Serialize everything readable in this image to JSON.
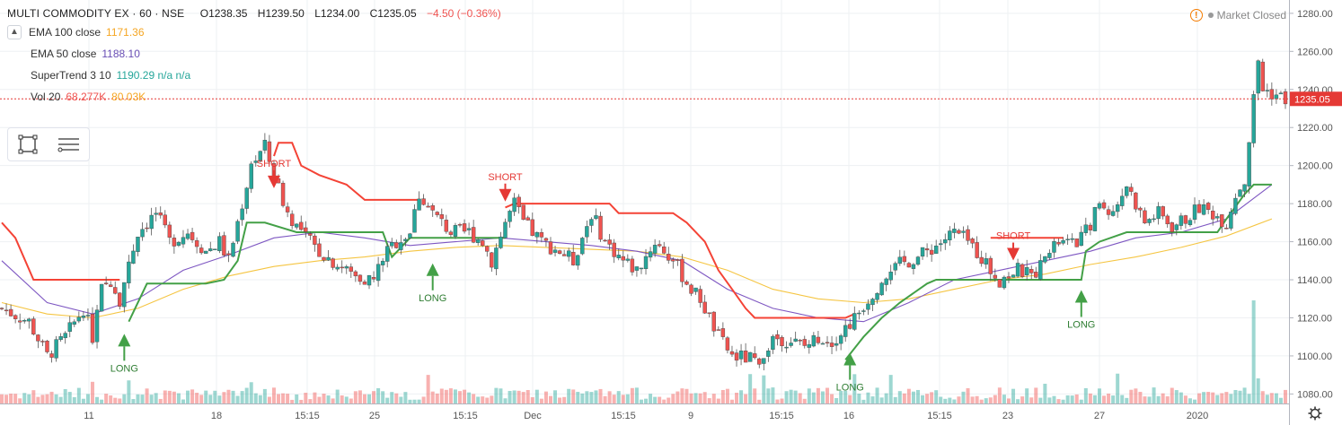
{
  "header": {
    "symbol": "MULTI COMMODITY EX · 60 · NSE",
    "open": "O1238.35",
    "high": "H1239.50",
    "low": "L1234.00",
    "close": "C1235.05",
    "change": "−4.50 (−0.36%)"
  },
  "collapse_icon": "chevron-up-icon",
  "indicators": [
    {
      "name": "EMA 100 close",
      "value": "1171.36",
      "color": "#f5a623"
    },
    {
      "name": "EMA 50 close",
      "value": "1188.10",
      "color": "#6a4fb5"
    },
    {
      "name": "SuperTrend 3 10",
      "value": "1190.29 n/a n/a",
      "color": "#26a69a"
    },
    {
      "name": "Vol 20",
      "value": "68.277K",
      "value2": "80.03K",
      "color": "#ef5350",
      "color2": "#f5a623"
    }
  ],
  "market_status": {
    "label": "Market Closed",
    "icon": "warning-icon"
  },
  "toolbox": {
    "icons": [
      "rectangle-tool-icon",
      "lines-menu-icon"
    ]
  },
  "colors": {
    "up": "#26a69a",
    "down": "#ef5350",
    "supertrend_up": "#43a047",
    "supertrend_down": "#f44336",
    "ema100": "#f5c542",
    "ema50": "#7e57c2",
    "price_line": "#e53935",
    "grid": "#eef0f3"
  },
  "chart_data": {
    "type": "candlestick",
    "x_labels": [
      "11",
      "18",
      "15:15",
      "25",
      "15:15",
      "Dec",
      "15:15",
      "9",
      "15:15",
      "16",
      "15:15",
      "23",
      "27",
      "2020"
    ],
    "y_ticks": [
      1080,
      1100,
      1120,
      1140,
      1160,
      1180,
      1200,
      1220,
      1240,
      1260,
      1280
    ],
    "y_tick_labels": [
      "1080.00",
      "1100.00",
      "1120.00",
      "1140.00",
      "1160.00",
      "1180.00",
      "1200.00",
      "1220.00",
      "1240.00",
      "1260.00",
      "1280.00"
    ],
    "ylim": [
      1075,
      1287
    ],
    "last_price": 1235.05,
    "last_price_label": "1235.05",
    "close_path": [
      [
        0,
        1125
      ],
      [
        6,
        1118
      ],
      [
        10,
        1100
      ],
      [
        14,
        1110
      ],
      [
        18,
        1125
      ],
      [
        20,
        1110
      ],
      [
        22,
        1135
      ],
      [
        24,
        1140
      ],
      [
        26,
        1130
      ],
      [
        30,
        1165
      ],
      [
        34,
        1175
      ],
      [
        37,
        1160
      ],
      [
        41,
        1165
      ],
      [
        45,
        1155
      ],
      [
        48,
        1160
      ],
      [
        50,
        1150
      ],
      [
        52,
        1170
      ],
      [
        55,
        1200
      ],
      [
        58,
        1210
      ],
      [
        60,
        1195
      ],
      [
        63,
        1175
      ],
      [
        66,
        1165
      ],
      [
        70,
        1155
      ],
      [
        74,
        1148
      ],
      [
        78,
        1142
      ],
      [
        82,
        1140
      ],
      [
        84,
        1152
      ],
      [
        87,
        1160
      ],
      [
        90,
        1165
      ],
      [
        92,
        1185
      ],
      [
        95,
        1175
      ],
      [
        99,
        1165
      ],
      [
        103,
        1165
      ],
      [
        106,
        1160
      ],
      [
        108,
        1150
      ],
      [
        111,
        1170
      ],
      [
        113,
        1180
      ],
      [
        115,
        1170
      ],
      [
        119,
        1160
      ],
      [
        123,
        1155
      ],
      [
        126,
        1150
      ],
      [
        130,
        1175
      ],
      [
        133,
        1160
      ],
      [
        137,
        1150
      ],
      [
        140,
        1145
      ],
      [
        144,
        1160
      ],
      [
        148,
        1150
      ],
      [
        152,
        1135
      ],
      [
        154,
        1130
      ],
      [
        156,
        1120
      ],
      [
        158,
        1110
      ],
      [
        161,
        1100
      ],
      [
        166,
        1098
      ],
      [
        168,
        1100
      ],
      [
        170,
        1110
      ],
      [
        174,
        1108
      ],
      [
        177,
        1105
      ],
      [
        180,
        1110
      ],
      [
        183,
        1108
      ],
      [
        186,
        1115
      ],
      [
        188,
        1120
      ],
      [
        191,
        1130
      ],
      [
        194,
        1140
      ],
      [
        198,
        1148
      ],
      [
        202,
        1152
      ],
      [
        206,
        1158
      ],
      [
        210,
        1165
      ],
      [
        213,
        1160
      ],
      [
        216,
        1152
      ],
      [
        218,
        1145
      ],
      [
        220,
        1140
      ],
      [
        224,
        1145
      ],
      [
        227,
        1142
      ],
      [
        230,
        1150
      ],
      [
        233,
        1160
      ],
      [
        236,
        1158
      ],
      [
        239,
        1165
      ],
      [
        242,
        1180
      ],
      [
        245,
        1175
      ],
      [
        248,
        1190
      ],
      [
        250,
        1180
      ],
      [
        252,
        1170
      ],
      [
        255,
        1175
      ],
      [
        258,
        1168
      ],
      [
        261,
        1172
      ],
      [
        264,
        1178
      ],
      [
        267,
        1175
      ],
      [
        270,
        1170
      ],
      [
        272,
        1185
      ],
      [
        274,
        1192
      ],
      [
        276,
        1235
      ],
      [
        277,
        1255
      ],
      [
        278,
        1240
      ],
      [
        280,
        1238
      ],
      [
        283,
        1235
      ]
    ],
    "supertrend": {
      "green_1": [
        [
          28,
          1118
        ],
        [
          32,
          1138
        ],
        [
          45,
          1138
        ],
        [
          49,
          1140
        ],
        [
          52,
          1150
        ],
        [
          54,
          1170
        ],
        [
          58,
          1170
        ],
        [
          65,
          1165
        ],
        [
          84,
          1165
        ],
        [
          86,
          1152
        ],
        [
          90,
          1162
        ],
        [
          111,
          1162
        ]
      ],
      "red_1": [
        [
          0,
          1170
        ],
        [
          3,
          1162
        ],
        [
          7,
          1140
        ],
        [
          26,
          1140
        ],
        [
          26,
          1140
        ]
      ],
      "red_2": [
        [
          60,
          1205
        ],
        [
          61,
          1212
        ],
        [
          64,
          1212
        ],
        [
          66,
          1200
        ],
        [
          70,
          1195
        ],
        [
          76,
          1190
        ],
        [
          80,
          1182
        ],
        [
          84,
          1182
        ],
        [
          92,
          1182
        ]
      ],
      "red_3": [
        [
          111,
          1178
        ],
        [
          113,
          1180
        ],
        [
          134,
          1180
        ],
        [
          136,
          1175
        ],
        [
          140,
          1175
        ],
        [
          148,
          1175
        ],
        [
          151,
          1170
        ],
        [
          155,
          1160
        ],
        [
          158,
          1145
        ],
        [
          161,
          1135
        ],
        [
          164,
          1125
        ],
        [
          166,
          1120
        ],
        [
          186,
          1120
        ],
        [
          188,
          1122
        ]
      ],
      "green_2": [
        [
          186,
          1098
        ],
        [
          190,
          1110
        ],
        [
          194,
          1120
        ],
        [
          198,
          1128
        ],
        [
          204,
          1138
        ],
        [
          206,
          1140
        ],
        [
          215,
          1140
        ],
        [
          230,
          1140
        ],
        [
          235,
          1140
        ],
        [
          238,
          1140
        ],
        [
          239,
          1155
        ],
        [
          242,
          1160
        ],
        [
          248,
          1165
        ],
        [
          268,
          1165
        ],
        [
          270,
          1172
        ],
        [
          274,
          1185
        ],
        [
          276,
          1190
        ],
        [
          280,
          1190
        ]
      ],
      "red_4": [
        [
          218,
          1162
        ],
        [
          232,
          1162
        ],
        [
          234,
          1162
        ]
      ]
    },
    "ema50": [
      [
        0,
        1150
      ],
      [
        10,
        1128
      ],
      [
        20,
        1122
      ],
      [
        30,
        1130
      ],
      [
        40,
        1145
      ],
      [
        50,
        1153
      ],
      [
        60,
        1162
      ],
      [
        70,
        1165
      ],
      [
        80,
        1162
      ],
      [
        90,
        1158
      ],
      [
        100,
        1160
      ],
      [
        110,
        1162
      ],
      [
        120,
        1160
      ],
      [
        130,
        1158
      ],
      [
        140,
        1155
      ],
      [
        150,
        1150
      ],
      [
        160,
        1135
      ],
      [
        170,
        1125
      ],
      [
        180,
        1120
      ],
      [
        190,
        1118
      ],
      [
        200,
        1128
      ],
      [
        210,
        1140
      ],
      [
        220,
        1145
      ],
      [
        230,
        1150
      ],
      [
        240,
        1155
      ],
      [
        250,
        1162
      ],
      [
        260,
        1165
      ],
      [
        270,
        1172
      ],
      [
        280,
        1190
      ]
    ],
    "ema100": [
      [
        0,
        1128
      ],
      [
        10,
        1122
      ],
      [
        20,
        1120
      ],
      [
        30,
        1125
      ],
      [
        40,
        1135
      ],
      [
        50,
        1142
      ],
      [
        60,
        1147
      ],
      [
        70,
        1150
      ],
      [
        80,
        1152
      ],
      [
        90,
        1155
      ],
      [
        100,
        1157
      ],
      [
        110,
        1158
      ],
      [
        120,
        1157
      ],
      [
        130,
        1156
      ],
      [
        140,
        1155
      ],
      [
        150,
        1152
      ],
      [
        160,
        1145
      ],
      [
        170,
        1135
      ],
      [
        180,
        1130
      ],
      [
        190,
        1128
      ],
      [
        200,
        1130
      ],
      [
        210,
        1135
      ],
      [
        220,
        1140
      ],
      [
        230,
        1143
      ],
      [
        240,
        1148
      ],
      [
        250,
        1152
      ],
      [
        260,
        1157
      ],
      [
        270,
        1163
      ],
      [
        280,
        1172
      ]
    ],
    "signals": [
      {
        "type": "LONG",
        "index": 27,
        "price": 1105
      },
      {
        "type": "SHORT",
        "index": 60,
        "price": 1190
      },
      {
        "type": "LONG",
        "index": 95,
        "price": 1142
      },
      {
        "type": "SHORT",
        "index": 111,
        "price": 1183
      },
      {
        "type": "LONG",
        "index": 187,
        "price": 1095
      },
      {
        "type": "SHORT",
        "index": 223,
        "price": 1152
      },
      {
        "type": "LONG",
        "index": 238,
        "price": 1128
      }
    ]
  }
}
